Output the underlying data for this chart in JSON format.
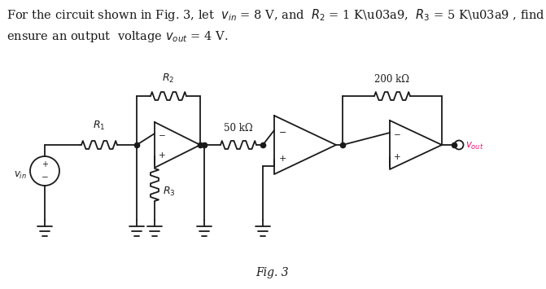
{
  "bg_color": "#ffffff",
  "line_color": "#1a1a1a",
  "vout_color": "#ee1177",
  "text_color": "#1a1a1a",
  "font_size_title": 10.5,
  "font_size_fig": 10,
  "label_50k": "50 kΩ",
  "label_200k": "200 kΩ"
}
